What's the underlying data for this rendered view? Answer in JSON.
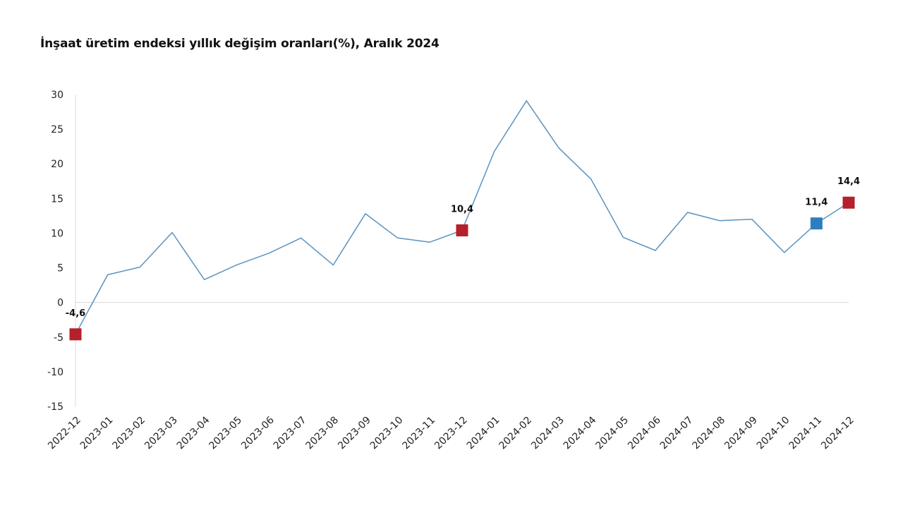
{
  "chart_data": {
    "type": "line",
    "title": "İnşaat üretim endeksi yıllık değişim oranları(%), Aralık 2024",
    "xlabel": "",
    "ylabel": "",
    "ylim": [
      -15,
      30
    ],
    "yticks": [
      30,
      25,
      20,
      15,
      10,
      5,
      0,
      -5,
      -10,
      -15
    ],
    "grid": false,
    "legend": "none",
    "categories": [
      "2022-12",
      "2023-01",
      "2023-02",
      "2023-03",
      "2023-04",
      "2023-05",
      "2023-06",
      "2023-07",
      "2023-08",
      "2023-09",
      "2023-10",
      "2023-11",
      "2023-12",
      "2024-01",
      "2024-02",
      "2024-03",
      "2024-04",
      "2024-05",
      "2024-06",
      "2024-07",
      "2024-08",
      "2024-09",
      "2024-10",
      "2024-11",
      "2024-12"
    ],
    "series": [
      {
        "values": [
          -4.6,
          4.0,
          5.1,
          10.1,
          3.3,
          5.4,
          7.1,
          9.3,
          5.4,
          12.8,
          9.3,
          8.7,
          10.4,
          21.8,
          29.1,
          22.3,
          17.8,
          9.4,
          7.5,
          13.0,
          11.8,
          12.0,
          7.2,
          11.4,
          14.4
        ]
      }
    ],
    "markers": [
      {
        "category": "2022-12",
        "label": "-4,6"
      },
      {
        "category": "2023-12",
        "label": "10,4"
      },
      {
        "category": "2024-11",
        "label": "11,4"
      },
      {
        "category": "2024-12",
        "label": "14,4"
      }
    ],
    "colors": {
      "line": "#5b93bf",
      "marker_red": "#b5202a",
      "marker_blue": "#2e7ebf",
      "axis": "#d9d9d9"
    }
  }
}
